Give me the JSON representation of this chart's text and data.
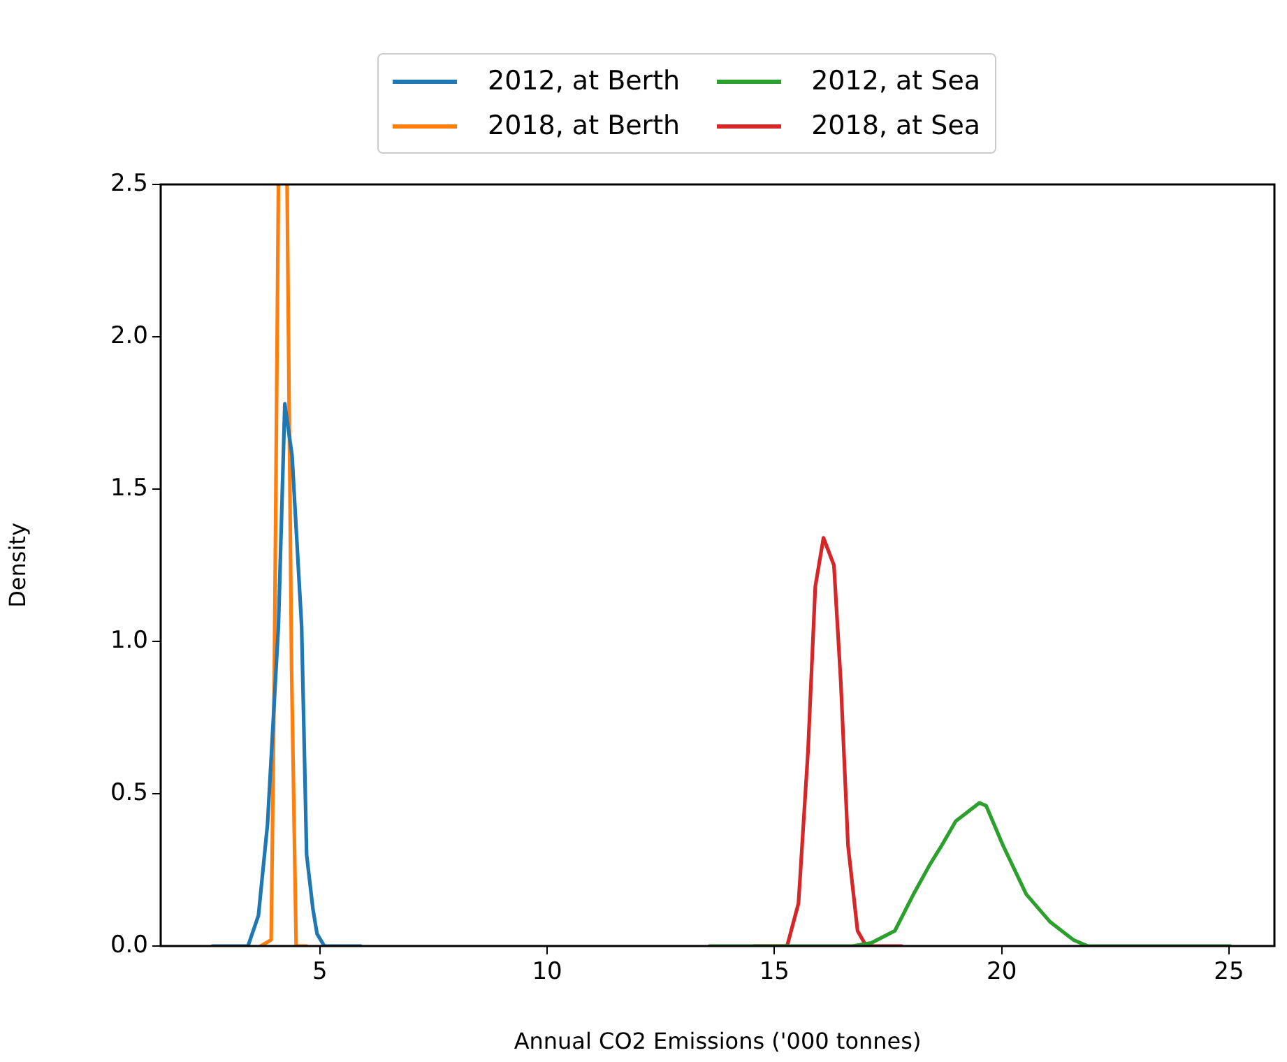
{
  "chart_data": {
    "type": "line",
    "xlabel": "Annual CO2 Emissions ('000 tonnes)",
    "ylabel": "Density",
    "xlim": [
      1.5,
      26
    ],
    "xticks": [
      5,
      10,
      15,
      20,
      25
    ],
    "ylim": [
      0,
      2.5
    ],
    "yticks": [
      {
        "value": 0,
        "label": "0.0"
      },
      {
        "value": 0.5,
        "label": "0.5"
      },
      {
        "value": 1,
        "label": "1.0"
      },
      {
        "value": 1.5,
        "label": "1.5"
      },
      {
        "value": 2,
        "label": "2.0"
      },
      {
        "value": 2.5,
        "label": "2.5"
      }
    ],
    "grid": false,
    "legend": "top",
    "marker": "none",
    "line_style": "solid",
    "series": [
      {
        "name": "2012, at Berth",
        "color": "#1f77b4",
        "x": [
          2.64,
          3.42,
          3.65,
          3.85,
          4.09,
          4.23,
          4.39,
          4.6,
          4.71,
          4.85,
          4.94,
          5.1,
          5.9
        ],
        "values": [
          0,
          0,
          0.1,
          0.4,
          1.05,
          1.78,
          1.61,
          1.05,
          0.3,
          0.12,
          0.04,
          0,
          0
        ]
      },
      {
        "name": "2018, at Berth",
        "color": "#ff7f0e",
        "x": [
          3.7,
          3.93,
          4.0,
          4.09,
          4.18,
          4.28,
          4.38,
          4.48,
          4.71
        ],
        "values": [
          0,
          0.02,
          0.9,
          2.5,
          null,
          2.5,
          0.9,
          0,
          0
        ]
      },
      {
        "name": "2012, at Sea",
        "color": "#2ca02c",
        "x": [
          13.57,
          16.72,
          17.13,
          17.65,
          18.06,
          18.43,
          18.68,
          18.99,
          19.51,
          19.66,
          20.03,
          20.54,
          21.06,
          21.58,
          21.89,
          25.03
        ],
        "values": [
          0,
          0,
          0.01,
          0.05,
          0.17,
          0.27,
          0.33,
          0.41,
          0.47,
          0.46,
          0.33,
          0.17,
          0.08,
          0.02,
          0,
          0
        ]
      },
      {
        "name": "2018, at Sea",
        "color": "#d62728",
        "x": [
          14.55,
          15.28,
          15.53,
          15.74,
          15.9,
          16.08,
          16.31,
          16.46,
          16.62,
          16.83,
          17.02,
          17.8
        ],
        "values": [
          0,
          0,
          0.14,
          0.64,
          1.18,
          1.34,
          1.25,
          0.87,
          0.33,
          0.05,
          0,
          0
        ]
      }
    ]
  }
}
